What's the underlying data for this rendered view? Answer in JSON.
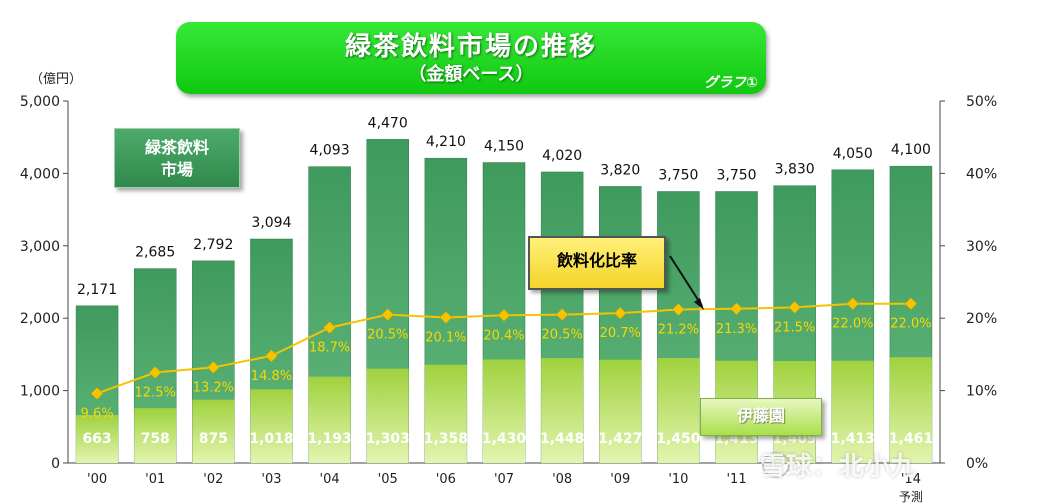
{
  "header": {
    "title": "緑茶飲料市場の推移",
    "subtitle": "（金額ベース）",
    "tag": "グラフ①"
  },
  "unit_label": "（億円）",
  "legend": {
    "market": "緑茶飲料\n市場",
    "ratio": "飲料化比率",
    "itoen": "伊藤園"
  },
  "watermark": "雪球：北小九",
  "colors": {
    "market_bar": "#3d9b5c",
    "itoen_bar": "#a8d84a",
    "ratio_line": "#f5c400",
    "title_bg": "#20d820"
  },
  "chart_data": {
    "type": "bar",
    "categories": [
      "'00",
      "'01",
      "'02",
      "'03",
      "'04",
      "'05",
      "'06",
      "'07",
      "'08",
      "'09",
      "'10",
      "'11",
      "",
      "",
      "'14"
    ],
    "category_note": "予測",
    "series": [
      {
        "name": "緑茶飲料市場",
        "values": [
          2171,
          2685,
          2792,
          3094,
          4093,
          4470,
          4210,
          4150,
          4020,
          3820,
          3750,
          3750,
          3830,
          4050,
          4100
        ],
        "labels": [
          "2,171",
          "2,685",
          "2,792",
          "3,094",
          "4,093",
          "4,470",
          "4,210",
          "4,150",
          "4,020",
          "3,820",
          "3,750",
          "3,750",
          "3,830",
          "4,050",
          "4,100"
        ]
      },
      {
        "name": "伊藤園",
        "values": [
          663,
          758,
          875,
          1018,
          1193,
          1303,
          1358,
          1430,
          1448,
          1427,
          1450,
          1413,
          1409,
          1413,
          1461
        ],
        "labels": [
          "663",
          "758",
          "875",
          "1,018",
          "1,193",
          "1,303",
          "1,358",
          "1,430",
          "1,448",
          "1,427",
          "1,450",
          "1,413",
          "1,409",
          "1,413",
          "1,461"
        ]
      },
      {
        "name": "飲料化比率",
        "axis": "right",
        "values": [
          9.6,
          12.5,
          13.2,
          14.8,
          18.7,
          20.5,
          20.1,
          20.4,
          20.5,
          20.7,
          21.2,
          21.3,
          21.5,
          22.0,
          22.0
        ],
        "labels": [
          "9.6%",
          "12.5%",
          "13.2%",
          "14.8%",
          "18.7%",
          "20.5%",
          "20.1%",
          "20.4%",
          "20.5%",
          "20.7%",
          "21.2%",
          "21.3%",
          "21.5%",
          "22.0%",
          "22.0%"
        ]
      }
    ],
    "ylim": [
      0,
      5000
    ],
    "yticks": [
      "0",
      "1,000",
      "2,000",
      "3,000",
      "4,000",
      "5,000"
    ],
    "y2lim": [
      0,
      50
    ],
    "y2ticks": [
      "0%",
      "10%",
      "20%",
      "30%",
      "40%",
      "50%"
    ]
  }
}
